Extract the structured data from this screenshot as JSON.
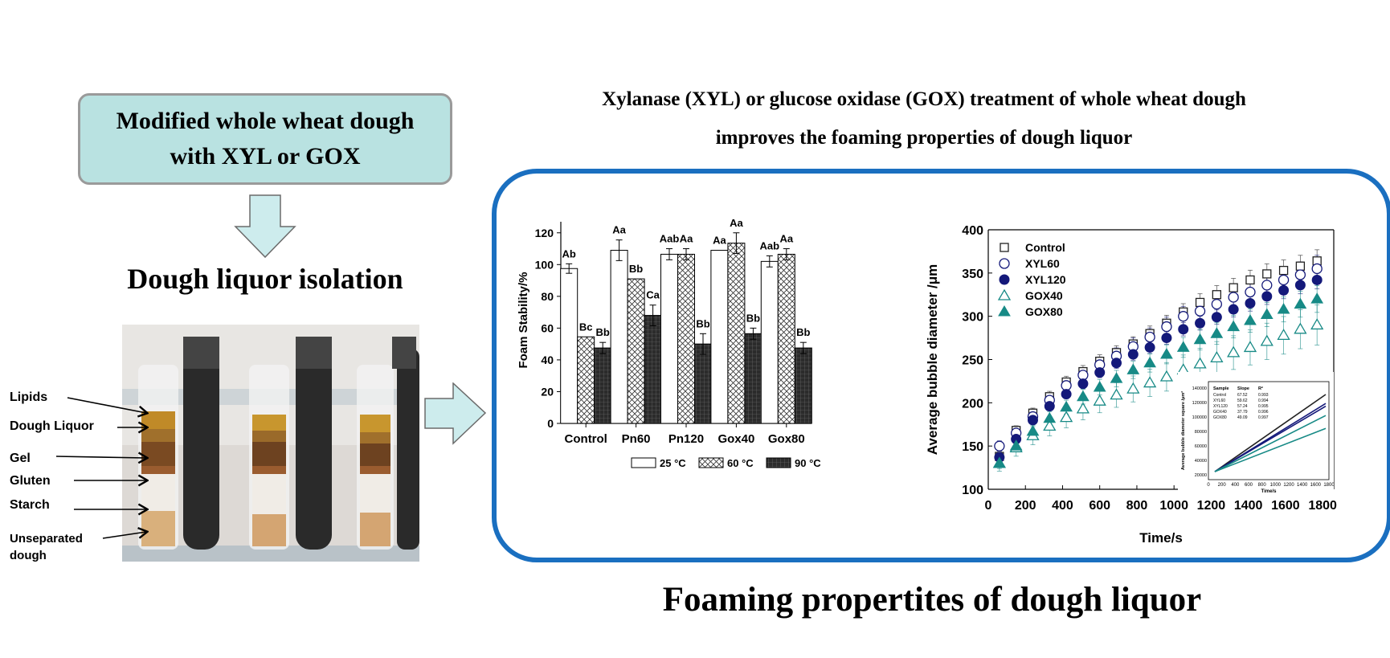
{
  "flow": {
    "top_box": {
      "line1": "Modified whole wheat dough",
      "line2": "with XYL or GOX"
    },
    "step2_title": "Dough liquor isolation",
    "headline": {
      "line1": "Xylanase (XYL) or glucose oxidase (GOX) treatment of whole wheat dough",
      "line2": "improves the foaming properties of dough liquor"
    },
    "bottom_title": "Foaming propertites of dough liquor"
  },
  "photo_labels": [
    "Lipids",
    "Dough Liquor",
    "Gel",
    "Gluten",
    "Starch",
    "Unseparated",
    "dough"
  ],
  "colors": {
    "box_fill": "#b9e2e1",
    "panel_border": "#1a6fc0",
    "arrow_fill": "#cdeced",
    "teal": "#178a86",
    "navy": "#14197a"
  },
  "chart_data": [
    {
      "type": "bar",
      "ylabel": "Foam Stability/%",
      "ylim": [
        0,
        130
      ],
      "yticks": [
        0,
        20,
        40,
        60,
        80,
        100,
        120
      ],
      "categories": [
        "Control",
        "Pn60",
        "Pn120",
        "Gox40",
        "Gox80"
      ],
      "series": [
        {
          "name": "25 °C",
          "pattern": "white",
          "values": [
            97.5,
            109,
            106.5,
            109,
            102
          ],
          "errors": [
            3,
            6.5,
            3.5,
            0,
            3.5
          ],
          "labels": [
            "Ab",
            "Aa",
            "Aab",
            "Aa",
            "Aab"
          ]
        },
        {
          "name": "60 °C",
          "pattern": "crosshatch",
          "values": [
            54.5,
            91,
            106.5,
            113.5,
            106.5
          ],
          "errors": [
            0,
            0,
            3.5,
            6.5,
            3.5
          ],
          "labels": [
            "Bc",
            "Bb",
            "Aa",
            "Aa",
            "Aa"
          ]
        },
        {
          "name": "90 °C",
          "pattern": "dark-grid",
          "values": [
            47.5,
            68,
            50,
            56.5,
            47.5
          ],
          "errors": [
            3.5,
            6.5,
            6.5,
            3.5,
            3.5
          ],
          "labels": [
            "Bb",
            "Ca",
            "Bb",
            "Bb",
            "Bb"
          ]
        }
      ],
      "legend": "bottom"
    },
    {
      "type": "scatter",
      "xlabel": "Time/s",
      "ylabel": "Average bubble diameter /μm",
      "xlim": [
        0,
        1860
      ],
      "ylim": [
        100,
        400
      ],
      "xticks": [
        0,
        200,
        400,
        600,
        800,
        1000,
        1200,
        1400,
        1600,
        1800
      ],
      "yticks": [
        100,
        150,
        200,
        250,
        300,
        350,
        400
      ],
      "x": [
        60,
        150,
        240,
        330,
        420,
        510,
        600,
        690,
        780,
        870,
        960,
        1050,
        1140,
        1230,
        1320,
        1410,
        1500,
        1590,
        1680,
        1770
      ],
      "series": [
        {
          "name": "Control",
          "marker": "open-square",
          "values": [
            138,
            168,
            188,
            207,
            224,
            236,
            248,
            258,
            268,
            280,
            292,
            305,
            316,
            325,
            333,
            342,
            349,
            353,
            358,
            364
          ],
          "error": 10
        },
        {
          "name": "XYL60",
          "marker": "open-circle",
          "values": [
            150,
            165,
            184,
            203,
            220,
            232,
            244,
            254,
            265,
            276,
            288,
            300,
            306,
            314,
            322,
            328,
            336,
            342,
            348,
            355
          ],
          "error": 12
        },
        {
          "name": "XYL120",
          "marker": "filled-circle",
          "values": [
            137,
            158,
            180,
            196,
            210,
            222,
            235,
            246,
            256,
            264,
            275,
            285,
            292,
            299,
            308,
            315,
            323,
            330,
            336,
            342
          ],
          "error": 8
        },
        {
          "name": "GOX40",
          "marker": "open-triangle",
          "values": [
            130,
            148,
            162,
            173,
            183,
            193,
            202,
            209,
            216,
            223,
            230,
            238,
            245,
            252,
            258,
            264,
            271,
            278,
            285,
            290
          ],
          "error": 18
        },
        {
          "name": "GOX80",
          "marker": "filled-triangle",
          "values": [
            130,
            150,
            167,
            182,
            195,
            207,
            218,
            228,
            238,
            246,
            256,
            264,
            273,
            280,
            288,
            295,
            302,
            308,
            314,
            320
          ],
          "error": 12
        }
      ],
      "legend": "top-left",
      "inset": {
        "type": "table+line",
        "xlabel": "Time/s",
        "ylabel": "Average bubble diameter square /μm²",
        "xticks": [
          0,
          200,
          400,
          600,
          800,
          1000,
          1200,
          1400,
          1600,
          1800
        ],
        "yticks": [
          20000,
          40000,
          60000,
          80000,
          100000,
          120000,
          140000
        ],
        "columns": [
          "Sample",
          "Slope",
          "R²"
        ],
        "rows": [
          [
            "Control",
            "67.52",
            "0.993"
          ],
          [
            "XYL60",
            "59.62",
            "0.994"
          ],
          [
            "XYL120",
            "57.24",
            "0.995"
          ],
          [
            "GOX40",
            "37.79",
            "0.996"
          ],
          [
            "GOX80",
            "49.09",
            "0.997"
          ]
        ]
      }
    }
  ]
}
